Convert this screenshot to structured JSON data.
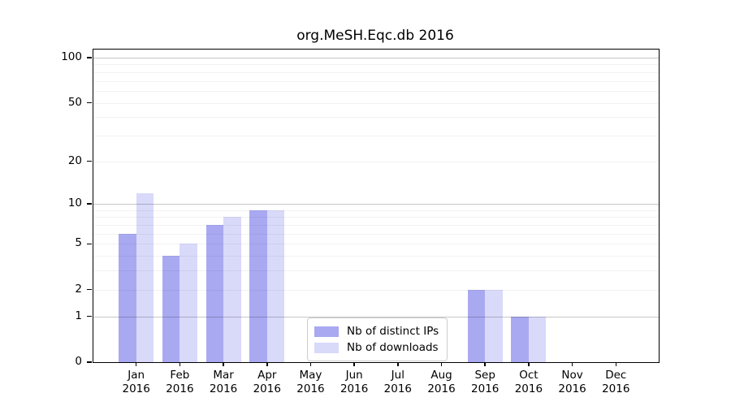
{
  "title": "org.MeSH.Eqc.db 2016",
  "legend": {
    "items": [
      {
        "label": "Nb of distinct IPs",
        "color": "#a9a9f2"
      },
      {
        "label": "Nb of downloads",
        "color": "#d9d9fa"
      }
    ]
  },
  "chart_data": {
    "type": "bar",
    "title": "org.MeSH.Eqc.db 2016",
    "categories": [
      "Jan",
      "Feb",
      "Mar",
      "Apr",
      "May",
      "Jun",
      "Jul",
      "Aug",
      "Sep",
      "Oct",
      "Nov",
      "Dec"
    ],
    "year_label": "2016",
    "series": [
      {
        "name": "Nb of distinct IPs",
        "color": "#a9a9f2",
        "values": [
          6,
          4,
          7,
          9,
          0,
          0,
          0,
          0,
          2,
          1,
          0,
          0
        ]
      },
      {
        "name": "Nb of downloads",
        "color": "#d9d9fa",
        "values": [
          12,
          5,
          8,
          9,
          0,
          0,
          0,
          0,
          2,
          1,
          0,
          0
        ]
      }
    ],
    "yscale": "log10(value+1)",
    "ylim": [
      0,
      113
    ],
    "yticks": [
      0,
      1,
      2,
      5,
      10,
      20,
      50,
      100
    ],
    "major_gridlines": [
      1,
      10,
      100
    ],
    "minor_gridlines": [
      2,
      3,
      4,
      5,
      6,
      7,
      8,
      9,
      20,
      30,
      40,
      50,
      60,
      70,
      80,
      90
    ],
    "grid": true,
    "legend_position": "inside lower center-right"
  }
}
